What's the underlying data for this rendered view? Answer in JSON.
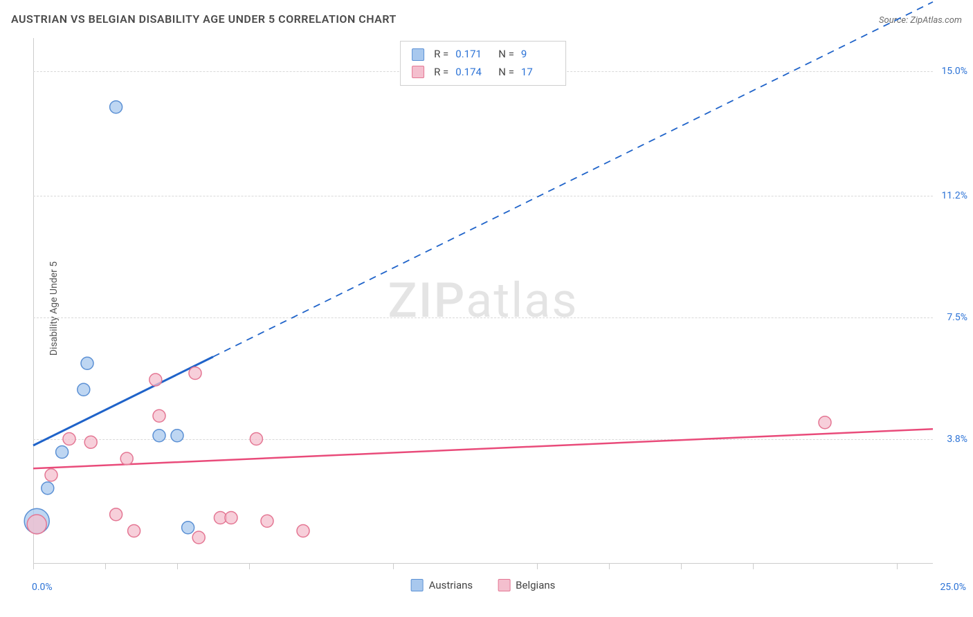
{
  "title": "AUSTRIAN VS BELGIAN DISABILITY AGE UNDER 5 CORRELATION CHART",
  "source": "Source: ZipAtlas.com",
  "watermark": "ZIPatlas",
  "y_axis_label": "Disability Age Under 5",
  "chart": {
    "type": "scatter",
    "background_color": "#ffffff",
    "grid_color": "#d8d8d8",
    "axis_color": "#cccccc",
    "xlim": [
      0,
      25
    ],
    "ylim": [
      0,
      16
    ],
    "x_min_label": "0.0%",
    "x_max_label": "25.0%",
    "y_ticks": [
      {
        "value": 3.8,
        "label": "3.8%"
      },
      {
        "value": 7.5,
        "label": "7.5%"
      },
      {
        "value": 11.2,
        "label": "11.2%"
      },
      {
        "value": 15.0,
        "label": "15.0%"
      }
    ],
    "x_ticks": [
      0,
      2,
      4,
      6,
      10,
      14,
      16,
      18,
      20,
      24
    ],
    "series": [
      {
        "name": "Austrians",
        "fill": "#a8c8ee",
        "stroke": "#5b90d4",
        "marker_radius": 9,
        "stats": {
          "R": "0.171",
          "N": "9"
        },
        "points": [
          {
            "x": 0.1,
            "y": 1.3,
            "r": 18
          },
          {
            "x": 0.4,
            "y": 2.3
          },
          {
            "x": 0.8,
            "y": 3.4
          },
          {
            "x": 1.4,
            "y": 5.3
          },
          {
            "x": 1.5,
            "y": 6.1
          },
          {
            "x": 2.3,
            "y": 13.9
          },
          {
            "x": 3.5,
            "y": 3.9
          },
          {
            "x": 4.0,
            "y": 3.9
          },
          {
            "x": 4.3,
            "y": 1.1
          }
        ],
        "trend": {
          "color": "#1f63c9",
          "width": 3,
          "solid_from": [
            0,
            3.6
          ],
          "solid_to": [
            5.0,
            6.3
          ],
          "dashed_to": [
            25,
            17.1
          ]
        }
      },
      {
        "name": "Belgians",
        "fill": "#f4bfce",
        "stroke": "#e47693",
        "marker_radius": 9,
        "stats": {
          "R": "0.174",
          "N": "17"
        },
        "points": [
          {
            "x": 0.1,
            "y": 1.2,
            "r": 14
          },
          {
            "x": 0.5,
            "y": 2.7
          },
          {
            "x": 1.0,
            "y": 3.8
          },
          {
            "x": 1.6,
            "y": 3.7
          },
          {
            "x": 2.3,
            "y": 1.5
          },
          {
            "x": 2.6,
            "y": 3.2
          },
          {
            "x": 2.8,
            "y": 1.0
          },
          {
            "x": 3.4,
            "y": 5.6
          },
          {
            "x": 3.5,
            "y": 4.5
          },
          {
            "x": 4.5,
            "y": 5.8
          },
          {
            "x": 4.6,
            "y": 0.8
          },
          {
            "x": 5.2,
            "y": 1.4
          },
          {
            "x": 5.5,
            "y": 1.4
          },
          {
            "x": 6.2,
            "y": 3.8
          },
          {
            "x": 6.5,
            "y": 1.3
          },
          {
            "x": 7.5,
            "y": 1.0
          },
          {
            "x": 22.0,
            "y": 4.3
          }
        ],
        "trend": {
          "color": "#e94b7a",
          "width": 2.5,
          "solid_from": [
            0,
            2.9
          ],
          "solid_to": [
            25,
            4.1
          ]
        }
      }
    ]
  },
  "tick_label_color": "#2b72d6"
}
